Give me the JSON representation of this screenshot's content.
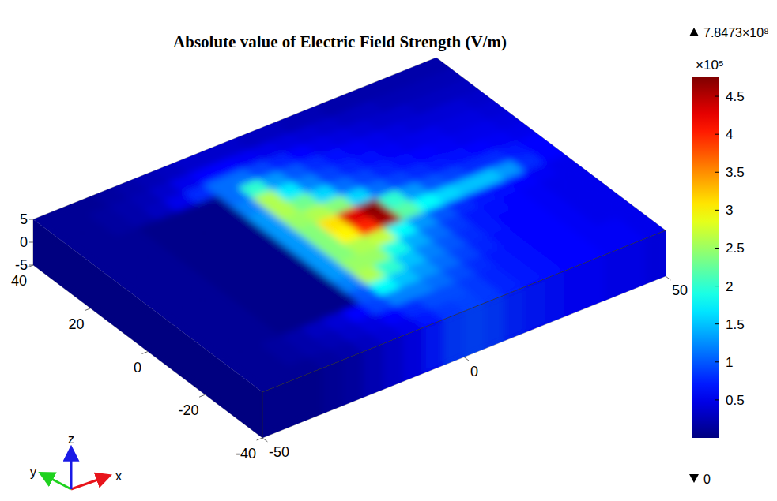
{
  "chart_data": {
    "type": "surface",
    "title": "Absolute value of Electric Field Strength (V/m)",
    "axis_labels": {
      "x": "x",
      "y": "y",
      "z": "z"
    },
    "xlim": [
      -50,
      50
    ],
    "ylim": [
      -40,
      40
    ],
    "zlim": [
      -5,
      5
    ],
    "xticks": [
      -50,
      0,
      50
    ],
    "yticks": [
      -40,
      -20,
      0,
      20,
      40
    ],
    "zticks": [
      -5,
      0,
      5
    ],
    "cells": [
      [
        0.1,
        0.1,
        0.1,
        0.15,
        0.2,
        0.3,
        0.4,
        0.5,
        0.7,
        0.85,
        0.9,
        0.85,
        0.75,
        0.7,
        0.65,
        0.6,
        0.6,
        0.55,
        0.55,
        0.5
      ],
      [
        0.1,
        0.1,
        0.15,
        0.2,
        0.25,
        0.35,
        0.45,
        0.6,
        0.8,
        0.95,
        0.95,
        0.85,
        0.75,
        0.7,
        0.65,
        0.6,
        0.6,
        0.55,
        0.55,
        0.5
      ],
      [
        0.1,
        0.1,
        0.15,
        0.2,
        0.3,
        0.4,
        0.6,
        0.9,
        1.2,
        1.2,
        1.1,
        0.95,
        0.8,
        0.7,
        0.65,
        0.6,
        0.6,
        0.55,
        0.5,
        0.5
      ],
      [
        0.1,
        0.1,
        0.1,
        0.05,
        0.05,
        0.05,
        0.05,
        1.0,
        1.8,
        1.5,
        1.3,
        1.1,
        0.9,
        0.75,
        0.65,
        0.6,
        0.6,
        0.55,
        0.5,
        0.5
      ],
      [
        0.1,
        0.1,
        0.1,
        0.05,
        0.05,
        0.05,
        0.05,
        1.2,
        2.6,
        2.0,
        1.5,
        1.2,
        1.0,
        0.8,
        0.7,
        0.6,
        0.6,
        0.55,
        0.5,
        0.5
      ],
      [
        0.1,
        0.1,
        0.1,
        0.05,
        0.05,
        0.05,
        0.05,
        1.3,
        2.5,
        2.5,
        1.9,
        1.4,
        1.1,
        0.85,
        0.7,
        0.65,
        0.6,
        0.55,
        0.5,
        0.5
      ],
      [
        0.1,
        0.1,
        0.1,
        0.05,
        0.05,
        0.05,
        0.05,
        1.3,
        2.4,
        2.6,
        2.7,
        1.8,
        1.3,
        1.0,
        0.8,
        0.7,
        0.65,
        0.6,
        0.55,
        0.5
      ],
      [
        0.1,
        0.1,
        0.1,
        0.05,
        0.05,
        0.05,
        0.05,
        1.3,
        2.4,
        3.0,
        4.0,
        4.6,
        2.2,
        1.8,
        1.6,
        1.5,
        1.5,
        1.3,
        0.8,
        0.6
      ],
      [
        0.1,
        0.1,
        0.1,
        0.05,
        0.05,
        0.05,
        0.05,
        1.3,
        2.4,
        3.1,
        4.3,
        4.7,
        2.0,
        1.3,
        1.0,
        0.9,
        0.8,
        0.8,
        0.7,
        0.6
      ],
      [
        0.1,
        0.1,
        0.1,
        0.05,
        0.05,
        0.05,
        0.05,
        1.3,
        2.5,
        2.6,
        2.4,
        1.6,
        1.1,
        0.9,
        0.8,
        0.7,
        0.65,
        0.6,
        0.55,
        0.5
      ],
      [
        0.1,
        0.1,
        0.1,
        0.05,
        0.05,
        0.05,
        0.05,
        1.3,
        2.6,
        2.3,
        1.6,
        1.1,
        0.9,
        0.75,
        0.65,
        0.6,
        0.55,
        0.5,
        0.5,
        0.45
      ],
      [
        0.1,
        0.1,
        0.1,
        0.05,
        0.05,
        0.05,
        0.05,
        1.2,
        2.6,
        1.7,
        1.2,
        0.9,
        0.75,
        0.65,
        0.55,
        0.5,
        0.5,
        0.45,
        0.45,
        0.4
      ],
      [
        0.1,
        0.1,
        0.1,
        0.05,
        0.05,
        0.05,
        0.05,
        1.1,
        2.0,
        1.3,
        1.0,
        0.8,
        0.65,
        0.55,
        0.5,
        0.45,
        0.4,
        0.4,
        0.4,
        0.35
      ],
      [
        0.1,
        0.1,
        0.15,
        0.2,
        0.3,
        0.5,
        0.8,
        1.1,
        1.1,
        0.9,
        0.75,
        0.6,
        0.5,
        0.45,
        0.4,
        0.35,
        0.35,
        0.3,
        0.3,
        0.3
      ],
      [
        0.1,
        0.1,
        0.15,
        0.2,
        0.25,
        0.35,
        0.5,
        0.6,
        0.6,
        0.55,
        0.5,
        0.45,
        0.4,
        0.35,
        0.3,
        0.3,
        0.25,
        0.25,
        0.25,
        0.25
      ],
      [
        0.1,
        0.1,
        0.1,
        0.15,
        0.2,
        0.25,
        0.3,
        0.35,
        0.35,
        0.35,
        0.3,
        0.3,
        0.25,
        0.25,
        0.2,
        0.2,
        0.2,
        0.2,
        0.2,
        0.2
      ]
    ],
    "colorbar": {
      "range": [
        0,
        4.75
      ],
      "ticks": [
        0.5,
        1,
        1.5,
        2,
        2.5,
        3,
        3.5,
        4,
        4.5
      ],
      "scale_label": "×10⁵",
      "max": {
        "value": 784730000,
        "label": "7.8473×10⁸"
      },
      "min": 0
    }
  }
}
